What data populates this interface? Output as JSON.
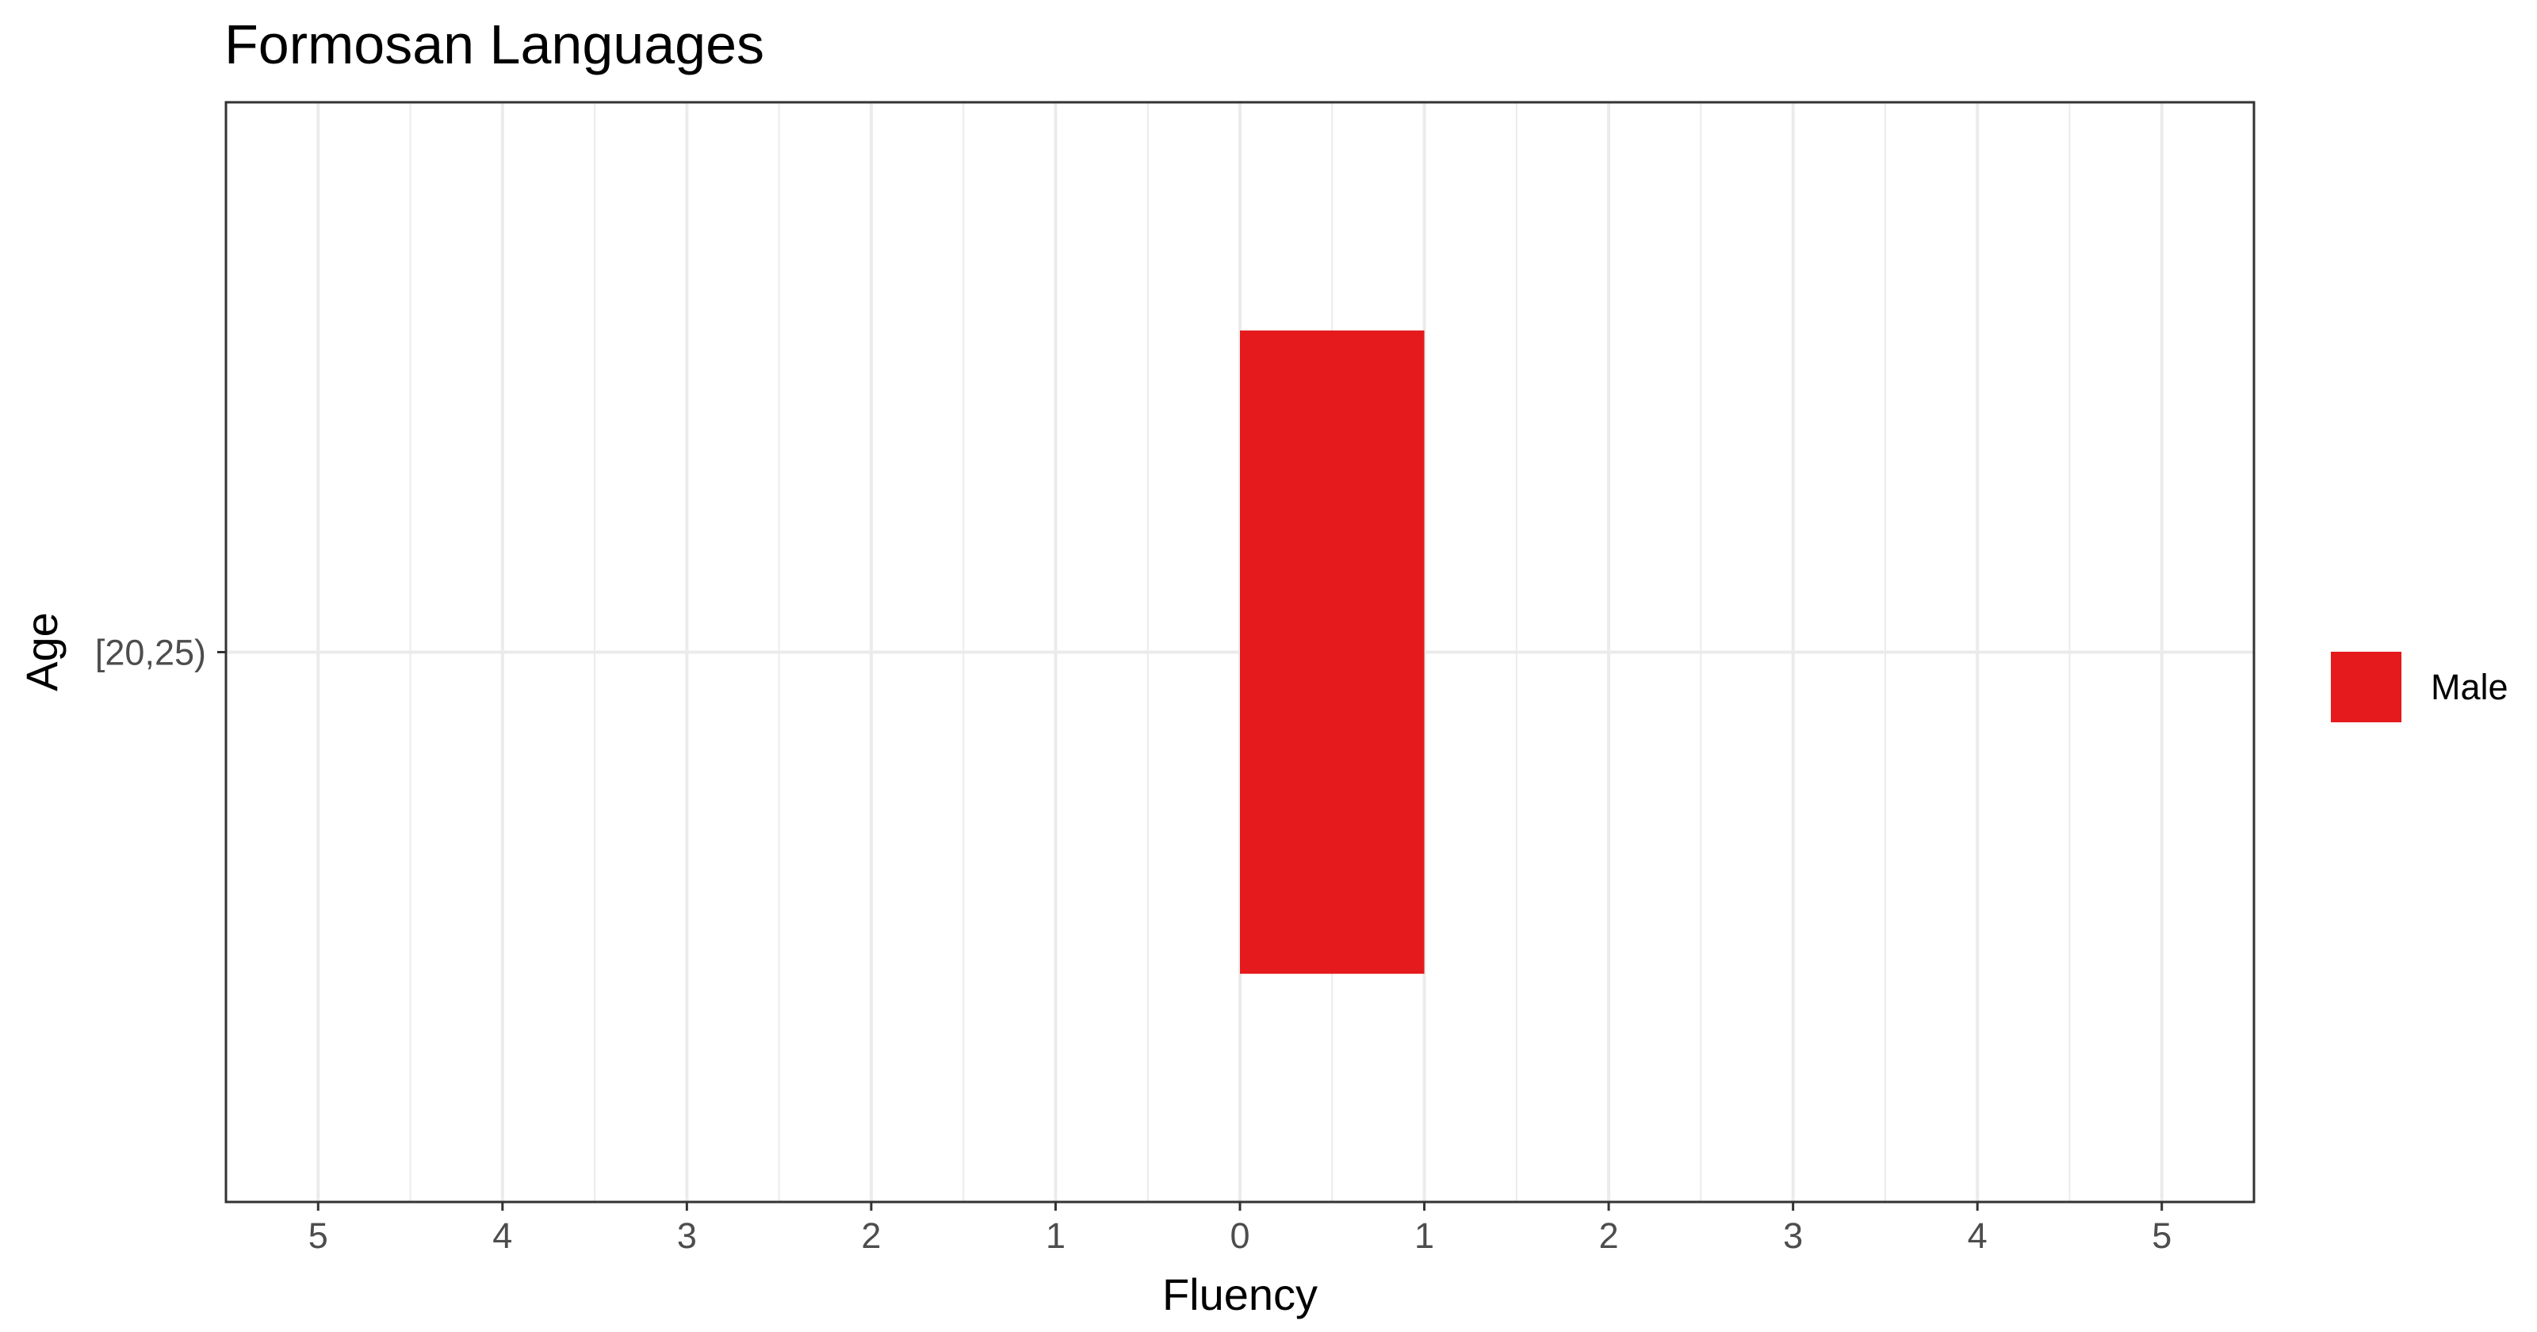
{
  "chart_data": {
    "type": "bar",
    "orientation": "horizontal",
    "title": "Formosan Languages",
    "xlabel": "Fluency",
    "ylabel": "Age",
    "categories": [
      "[20,25)"
    ],
    "series": [
      {
        "name": "Male",
        "values": [
          1
        ],
        "start": [
          0
        ],
        "color": "#E41A1C"
      }
    ],
    "xlim": [
      -5.5,
      5.5
    ],
    "x_ticks": [
      -5,
      -4,
      -3,
      -2,
      -1,
      0,
      1,
      2,
      3,
      4,
      5
    ],
    "x_tick_labels": [
      "5",
      "4",
      "3",
      "2",
      "1",
      "0",
      "1",
      "2",
      "3",
      "4",
      "5"
    ],
    "grid": true,
    "legend_position": "right",
    "panel_background": "#FFFFFF",
    "grid_color": "#EBEBEB",
    "border_color": "#333333"
  }
}
